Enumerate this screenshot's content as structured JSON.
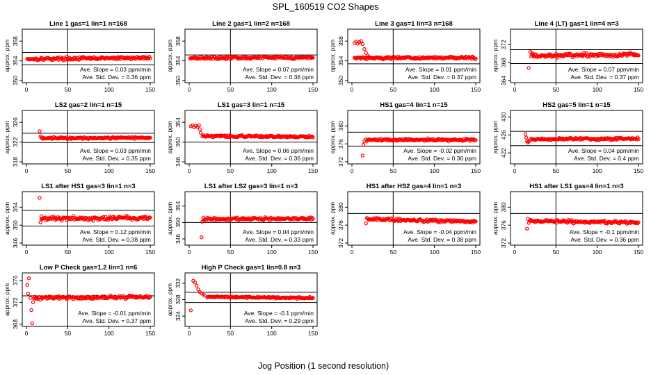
{
  "title": "SPL_160519  CO2 Shapes",
  "xlabel": "Jog Position (1 second resolution)",
  "colors": {
    "points": "#ff0000",
    "lines": "#000000",
    "background": "#ffffff"
  },
  "chart_data": [
    {
      "type": "scatter",
      "title": "Line 1 gas=1 lin=1 n=168",
      "ylabel": "approx. ppm",
      "xlim": [
        0,
        150
      ],
      "ylim": [
        350,
        360
      ],
      "xticks": [
        "0",
        "50",
        "100",
        "150"
      ],
      "yticks": [
        "350",
        "354",
        "358"
      ],
      "vline": 50,
      "hlines": [
        353.2,
        355.7
      ],
      "slope": "Ave. Slope =  0.03  ppm/min",
      "sd": "Ave. Std. Dev. =  0.36  ppm",
      "series": {
        "start": 1,
        "base": 354.4,
        "end": 354.6,
        "noise": 0.18
      }
    },
    {
      "type": "scatter",
      "title": "Line 2 gas=1 lin=2 n=168",
      "ylabel": "approx. ppm",
      "xlim": [
        0,
        150
      ],
      "ylim": [
        350,
        360
      ],
      "xticks": [
        "0",
        "50",
        "100",
        "150"
      ],
      "yticks": [
        "350",
        "354",
        "358"
      ],
      "vline": 50,
      "hlines": [
        355.2
      ],
      "slope": "Ave. Slope =  0.07  ppm/min",
      "sd": "Ave. Std. Dev. =  0.36  ppm",
      "series": {
        "start": 1,
        "base": 354.6,
        "end": 354.7,
        "noise": 0.16
      }
    },
    {
      "type": "scatter",
      "title": "Line 3 gas=1 lin=3 n=168",
      "ylabel": "approx. ppm",
      "xlim": [
        0,
        150
      ],
      "ylim": [
        350,
        360
      ],
      "xticks": [
        "0",
        "50",
        "100",
        "150"
      ],
      "yticks": [
        "350",
        "354",
        "358"
      ],
      "vline": 50,
      "hlines": [
        353.4
      ],
      "slope": "Ave. Slope =  0.01  ppm/min",
      "sd": "Ave. Std. Dev. =  0.37  ppm",
      "series": {
        "start": 3,
        "base": 354.6,
        "end": 354.6,
        "noise": 0.16,
        "lead": [
          [
            3,
            357.6
          ],
          [
            5,
            357.9
          ],
          [
            7,
            357.5
          ],
          [
            9,
            357.8
          ],
          [
            11,
            358.0
          ],
          [
            13,
            357.4
          ],
          [
            15,
            356.4
          ],
          [
            17,
            355.6
          ],
          [
            19,
            355.1
          ],
          [
            21,
            354.8
          ]
        ]
      }
    },
    {
      "type": "scatter",
      "title": "Line 4 (LT) gas=1 lin=4 n=3",
      "ylabel": "approx. ppm",
      "xlim": [
        0,
        150
      ],
      "ylim": [
        364,
        375
      ],
      "xticks": [
        "0",
        "50",
        "100",
        "150"
      ],
      "yticks": [
        "364",
        "368",
        "372"
      ],
      "vline": 50,
      "hlines": [
        367.8,
        370.9
      ],
      "slope": "Ave. Slope =  0.07  ppm/min",
      "sd": "Ave. Std. Dev. =  0.37  ppm",
      "series": {
        "start": 20,
        "base": 369.5,
        "end": 369.8,
        "noise": 0.25,
        "lead": [
          [
            17,
            366.8
          ],
          [
            19,
            370.4
          ],
          [
            21,
            370.1
          ],
          [
            23,
            369.9
          ]
        ]
      }
    },
    {
      "type": "scatter",
      "title": "LS2 gas=2 lin=1 n=15",
      "ylabel": "approx. ppm",
      "xlim": [
        0,
        150
      ],
      "ylim": [
        318,
        328
      ],
      "xticks": [
        "0",
        "50",
        "100",
        "150"
      ],
      "yticks": [
        "318",
        "322",
        "326"
      ],
      "vline": 50,
      "hlines": [
        321.9,
        323.8
      ],
      "slope": "Ave. Slope =  0.03  ppm/min",
      "sd": "Ave. Std. Dev. =  0.35  ppm",
      "series": {
        "start": 18,
        "base": 322.8,
        "end": 322.9,
        "noise": 0.12,
        "lead": [
          [
            16,
            324.2
          ],
          [
            17,
            323.2
          ]
        ]
      }
    },
    {
      "type": "scatter",
      "title": "LS1 gas=3 lin=1 n=15",
      "ylabel": "approx. ppm",
      "xlim": [
        0,
        150
      ],
      "ylim": [
        346,
        356
      ],
      "xticks": [
        "0",
        "50",
        "100",
        "150"
      ],
      "yticks": [
        "346",
        "350",
        "354"
      ],
      "vline": 50,
      "hlines": [
        350.0
      ],
      "slope": "Ave. Slope =  0.06  ppm/min",
      "sd": "Ave. Std. Dev. =  0.36  ppm",
      "series": {
        "start": 16,
        "base": 351.2,
        "end": 351.1,
        "noise": 0.13,
        "lead": [
          [
            2,
            353.2
          ],
          [
            4,
            353.4
          ],
          [
            6,
            353.0
          ],
          [
            8,
            353.3
          ],
          [
            10,
            353.1
          ],
          [
            12,
            353.4
          ],
          [
            13,
            352.6
          ],
          [
            14,
            351.9
          ]
        ]
      }
    },
    {
      "type": "scatter",
      "title": "HS1 gas=4 lin=1 n=15",
      "ylabel": "approx. ppm",
      "xlim": [
        0,
        150
      ],
      "ylim": [
        372,
        383
      ],
      "xticks": [
        "0",
        "50",
        "100",
        "150"
      ],
      "yticks": [
        "372",
        "376",
        "380"
      ],
      "vline": 50,
      "hlines": [
        375.5,
        378.6
      ],
      "slope": "Ave. Slope =  -0.02  ppm/min",
      "sd": "Ave. Std. Dev. =  0.36  ppm",
      "series": {
        "start": 17,
        "base": 376.9,
        "end": 376.9,
        "noise": 0.15,
        "lead": [
          [
            13,
            373.4
          ],
          [
            14,
            375.8
          ],
          [
            15,
            376.6
          ]
        ]
      }
    },
    {
      "type": "scatter",
      "title": "HS2 gas=5 lin=1 n=15",
      "ylabel": "approx. ppm",
      "xlim": [
        0,
        150
      ],
      "ylim": [
        420,
        431
      ],
      "xticks": [
        "0",
        "50",
        "100",
        "150"
      ],
      "yticks": [
        "422",
        "426",
        "430"
      ],
      "vline": 50,
      "hlines": [
        423.6,
        426.8
      ],
      "slope": "Ave. Slope =  0.04  ppm/min",
      "sd": "Ave. Std. Dev. =  0.4  ppm",
      "series": {
        "start": 20,
        "base": 425.0,
        "end": 425.2,
        "noise": 0.15,
        "lead": [
          [
            13,
            426.2
          ],
          [
            14,
            425.4
          ],
          [
            15,
            424.6
          ],
          [
            16,
            424.3
          ],
          [
            17,
            424.5
          ],
          [
            18,
            424.8
          ]
        ]
      }
    },
    {
      "type": "scatter",
      "title": "LS1 after HS1 gas=3 lin=1 n=3",
      "ylabel": "approx. ppm",
      "xlim": [
        0,
        150
      ],
      "ylim": [
        346,
        357
      ],
      "xticks": [
        "0",
        "50",
        "100",
        "150"
      ],
      "yticks": [
        "346",
        "350",
        "354"
      ],
      "vline": 50,
      "hlines": [
        349.8,
        353.3
      ],
      "slope": "Ave. Slope =  0.12  ppm/min",
      "sd": "Ave. Std. Dev. =  0.38  ppm",
      "series": {
        "start": 18,
        "base": 351.5,
        "end": 351.6,
        "noise": 0.28,
        "lead": [
          [
            16,
            356.1
          ],
          [
            17,
            350.6
          ],
          [
            18,
            352.0
          ]
        ]
      }
    },
    {
      "type": "scatter",
      "title": "LS1 after LS2 gas=3 lin=1 n=3",
      "ylabel": "approx. ppm",
      "xlim": [
        0,
        150
      ],
      "ylim": [
        345,
        357
      ],
      "xticks": [
        "0",
        "50",
        "100",
        "150"
      ],
      "yticks": [
        "346",
        "350",
        "354"
      ],
      "vline": 50,
      "hlines": [
        350.0
      ],
      "slope": "Ave. Slope =  0.04  ppm/min",
      "sd": "Ave. Std. Dev. =  0.33  ppm",
      "series": {
        "start": 19,
        "base": 350.8,
        "end": 351.0,
        "noise": 0.2,
        "lead": [
          [
            15,
            346.4
          ],
          [
            16,
            350.2
          ],
          [
            17,
            351.2
          ],
          [
            18,
            350.5
          ]
        ]
      }
    },
    {
      "type": "scatter",
      "title": "HS1 after HS2 gas=4 lin=1 n=3",
      "ylabel": "approx. ppm",
      "xlim": [
        0,
        150
      ],
      "ylim": [
        372,
        383
      ],
      "xticks": [
        "0",
        "50",
        "100",
        "150"
      ],
      "yticks": [
        "372",
        "376",
        "380"
      ],
      "vline": 50,
      "hlines": [
        378.6
      ],
      "slope": "Ave. Slope =  -0.04  ppm/min",
      "sd": "Ave. Std. Dev. =  0.38  ppm",
      "series": {
        "start": 19,
        "base": 377.3,
        "end": 376.8,
        "noise": 0.2,
        "lead": [
          [
            17,
            376.4
          ],
          [
            18,
            377.6
          ]
        ]
      }
    },
    {
      "type": "scatter",
      "title": "HS1 after LS1 gas=4 lin=1 n=3",
      "ylabel": "approx. ppm",
      "xlim": [
        0,
        150
      ],
      "ylim": [
        372,
        383
      ],
      "xticks": [
        "0",
        "50",
        "100",
        "150"
      ],
      "yticks": [
        "372",
        "376",
        "380"
      ],
      "vline": 50,
      "hlines": [
        378.6
      ],
      "slope": "Ave. Slope =  -0.1  ppm/min",
      "sd": "Ave. Std. Dev. =  0.36  ppm",
      "series": {
        "start": 18,
        "base": 376.9,
        "end": 376.6,
        "noise": 0.2,
        "lead": [
          [
            15,
            375.2
          ],
          [
            16,
            377.4
          ],
          [
            17,
            376.5
          ]
        ]
      }
    },
    {
      "type": "scatter",
      "title": "Low P Check gas=1.2 lin=1 n=6",
      "ylabel": "approx. ppm",
      "xlim": [
        0,
        150
      ],
      "ylim": [
        368,
        377
      ],
      "xticks": [
        "0",
        "50",
        "100",
        "150"
      ],
      "yticks": [
        "368",
        "372",
        "376"
      ],
      "vline": 50,
      "hlines": [
        373.2
      ],
      "slope": "Ave. Slope =  -0.01  ppm/min",
      "sd": "Ave. Std. Dev. =  0.37  ppm",
      "series": {
        "start": 9,
        "base": 372.8,
        "end": 373.0,
        "noise": 0.17,
        "lead": [
          [
            1,
            375.2
          ],
          [
            2,
            373.6
          ],
          [
            3,
            376.4
          ],
          [
            5,
            372.8
          ],
          [
            6,
            370.6
          ],
          [
            7,
            368.2
          ],
          [
            8,
            372.0
          ]
        ]
      }
    },
    {
      "type": "scatter",
      "title": "High P Check gas=1 lin=0.8 n=3",
      "ylabel": "approx. ppm",
      "xlim": [
        0,
        150
      ],
      "ylim": [
        322,
        334
      ],
      "xticks": [
        "0",
        "50",
        "100",
        "150"
      ],
      "yticks": [
        "324",
        "328",
        "332"
      ],
      "vline": 50,
      "hlines": [
        327.3,
        329.8
      ],
      "slope": "Ave. Slope =  -0.1  ppm/min",
      "sd": "Ave. Std. Dev. =  0.29  ppm",
      "series": {
        "start": 22,
        "base": 328.7,
        "end": 328.4,
        "noise": 0.12,
        "lead": [
          [
            2,
            325.4
          ],
          [
            5,
            332.6
          ],
          [
            7,
            332.2
          ],
          [
            9,
            331.4
          ],
          [
            11,
            330.5
          ],
          [
            13,
            329.9
          ],
          [
            15,
            329.5
          ],
          [
            17,
            329.2
          ],
          [
            19,
            329.0
          ]
        ]
      }
    }
  ]
}
